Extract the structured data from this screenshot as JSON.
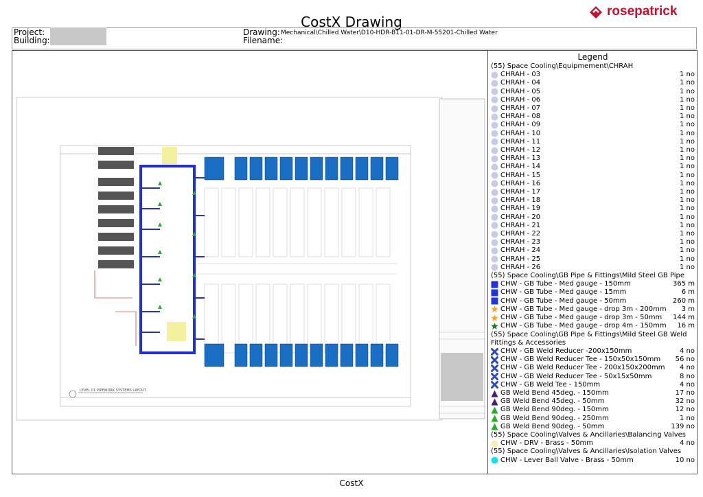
{
  "header": {
    "title": "CostX Drawing",
    "logo": "rosepatrick",
    "project_label": "Project:",
    "building_label": "Building:",
    "drawing_label": "Drawing:",
    "drawing_value": "Mechanical\\Chilled Water\\D10-HDR-B11-01-DR-M-55201-Chilled Water",
    "filename_label": "Filename:"
  },
  "drawing": {
    "caption": "LEVEL 01 PIPEWORK SYSTEMS LAYOUT"
  },
  "legend": {
    "title": "Legend",
    "groups": [
      {
        "heading": "(55) Space Cooling\\Equipmement\\CHRAH",
        "items": [
          {
            "label": "CHRAH - 03",
            "qty": "1 no",
            "marker": "circle",
            "color": "#c9c9e8"
          },
          {
            "label": "CHRAH - 04",
            "qty": "1 no",
            "marker": "circle",
            "color": "#c9c9e8"
          },
          {
            "label": "CHRAH - 05",
            "qty": "1 no",
            "marker": "circle",
            "color": "#c9c9e8"
          },
          {
            "label": "CHRAH - 06",
            "qty": "1 no",
            "marker": "circle",
            "color": "#c9c9e8"
          },
          {
            "label": "CHRAH - 07",
            "qty": "1 no",
            "marker": "circle",
            "color": "#c9c9e8"
          },
          {
            "label": "CHRAH - 08",
            "qty": "1 no",
            "marker": "circle",
            "color": "#c9c9e8"
          },
          {
            "label": "CHRAH - 09",
            "qty": "1 no",
            "marker": "circle",
            "color": "#c9c9e8"
          },
          {
            "label": "CHRAH - 10",
            "qty": "1 no",
            "marker": "circle",
            "color": "#c9c9e8"
          },
          {
            "label": "CHRAH - 11",
            "qty": "1 no",
            "marker": "circle",
            "color": "#c9c9e8"
          },
          {
            "label": "CHRAH - 12",
            "qty": "1 no",
            "marker": "circle",
            "color": "#c9c9e8"
          },
          {
            "label": "CHRAH - 13",
            "qty": "1 no",
            "marker": "circle",
            "color": "#c9c9e8"
          },
          {
            "label": "CHRAH - 14",
            "qty": "1 no",
            "marker": "circle",
            "color": "#c9c9e8"
          },
          {
            "label": "CHRAH - 15",
            "qty": "1 no",
            "marker": "circle",
            "color": "#c9c9e8"
          },
          {
            "label": "CHRAH - 16",
            "qty": "1 no",
            "marker": "circle",
            "color": "#c9c9e8"
          },
          {
            "label": "CHRAH - 17",
            "qty": "1 no",
            "marker": "circle",
            "color": "#c9c9e8"
          },
          {
            "label": "CHRAH - 18",
            "qty": "1 no",
            "marker": "circle",
            "color": "#c9c9e8"
          },
          {
            "label": "CHRAH - 19",
            "qty": "1 no",
            "marker": "circle",
            "color": "#c9c9e8"
          },
          {
            "label": "CHRAH - 20",
            "qty": "1 no",
            "marker": "circle",
            "color": "#c9c9e8"
          },
          {
            "label": "CHRAH - 21",
            "qty": "1 no",
            "marker": "circle",
            "color": "#c9c9e8"
          },
          {
            "label": "CHRAH - 22",
            "qty": "1 no",
            "marker": "circle",
            "color": "#c9c9e8"
          },
          {
            "label": "CHRAH - 23",
            "qty": "1 no",
            "marker": "circle",
            "color": "#c9c9e8"
          },
          {
            "label": "CHRAH - 24",
            "qty": "1 no",
            "marker": "circle",
            "color": "#c9c9e8"
          },
          {
            "label": "CHRAH - 25",
            "qty": "1 no",
            "marker": "circle",
            "color": "#c9c9e8"
          },
          {
            "label": "CHRAH - 26",
            "qty": "1 no",
            "marker": "circle",
            "color": "#c9c9e8"
          }
        ]
      },
      {
        "heading": "(55) Space Cooling\\GB Pipe & Fittings\\Mild Steel GB Pipe",
        "items": [
          {
            "label": "CHW - GB Tube - Med gauge - 150mm",
            "qty": "365 m",
            "marker": "square",
            "color": "#1f35d6"
          },
          {
            "label": "CHW - GB Tube - Med gauge - 15mm",
            "qty": "6 m",
            "marker": "square",
            "color": "#1f35d6"
          },
          {
            "label": "CHW - GB Tube - Med gauge - 50mm",
            "qty": "260 m",
            "marker": "square",
            "color": "#1f35d6"
          },
          {
            "label": "CHW - GB Tube - Med gauge - drop 3m - 200mm",
            "qty": "3 m",
            "marker": "star",
            "color": "#f5a623"
          },
          {
            "label": "CHW - GB Tube - Med gauge - drop 3m - 50mm",
            "qty": "144 m",
            "marker": "star",
            "color": "#f5a623"
          },
          {
            "label": "CHW - GB Tube - Med gauge - drop 4m - 150mm",
            "qty": "16 m",
            "marker": "star",
            "color": "#1d7a26"
          }
        ]
      },
      {
        "heading": "(55) Space Cooling\\GB Pipe & Fittings\\Mild Steel GB Weld Fittings & Accessories",
        "items": [
          {
            "label": "CHW - GB Weld Reducer -200x150mm",
            "qty": "4 no",
            "marker": "cross",
            "color": "#2a46d0"
          },
          {
            "label": "CHW - GB Weld Reducer Tee - 150x50x150mm",
            "qty": "56 no",
            "marker": "cross",
            "color": "#2a46d0"
          },
          {
            "label": "CHW - GB Weld Reducer Tee - 200x150x200mm",
            "qty": "4 no",
            "marker": "cross",
            "color": "#2a46d0"
          },
          {
            "label": "CHW - GB Weld Reducer Tee - 50x15x50mm",
            "qty": "8 no",
            "marker": "cross",
            "color": "#2a46d0"
          },
          {
            "label": "CHW - GB Weld Tee - 150mm",
            "qty": "4 no",
            "marker": "cross",
            "color": "#2a46d0"
          },
          {
            "label": "GB Weld Bend  45deg. - 150mm",
            "qty": "17 no",
            "marker": "triangle",
            "color": "#4a1a7c"
          },
          {
            "label": "GB Weld Bend  45deg. - 50mm",
            "qty": "32 no",
            "marker": "triangle",
            "color": "#4a1a7c"
          },
          {
            "label": "GB Weld Bend  90deg. - 150mm",
            "qty": "12 no",
            "marker": "triangle",
            "color": "#22b02a"
          },
          {
            "label": "GB Weld Bend  90deg. - 250mm",
            "qty": "1 no",
            "marker": "triangle",
            "color": "#22b02a"
          },
          {
            "label": "GB Weld Bend  90deg. - 50mm",
            "qty": "139 no",
            "marker": "triangle",
            "color": "#22b02a"
          }
        ]
      },
      {
        "heading": "(55) Space Cooling\\Valves & Ancillaries\\Balancing Valves",
        "items": [
          {
            "label": "CHW - DRV - Brass - 50mm",
            "qty": "4 no",
            "marker": "circle",
            "color": "#f6f0b4"
          }
        ]
      },
      {
        "heading": "(55) Space Cooling\\Valves & Ancillaries\\Isolation Valves",
        "items": [
          {
            "label": "CHW - Lever Ball Valve - Brass - 50mm",
            "qty": "10 no",
            "marker": "circle",
            "color": "#19dff0"
          }
        ]
      }
    ]
  },
  "footer": {
    "text": "CostX"
  }
}
